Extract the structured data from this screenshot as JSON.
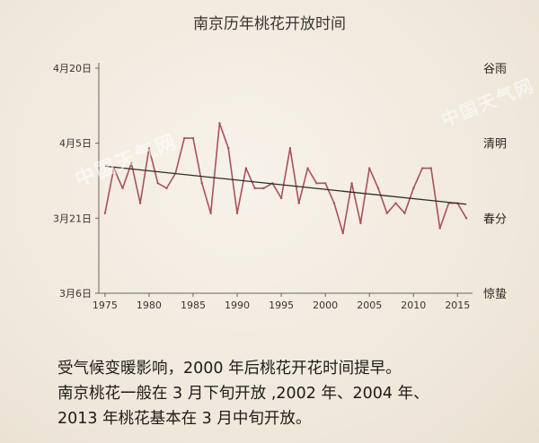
{
  "chart_data": {
    "type": "line",
    "title": "南京历年桃花开放时间",
    "x": [
      1975,
      1976,
      1977,
      1978,
      1979,
      1980,
      1981,
      1982,
      1983,
      1984,
      1985,
      1986,
      1987,
      1988,
      1989,
      1990,
      1991,
      1992,
      1993,
      1994,
      1995,
      1996,
      1997,
      1998,
      1999,
      2000,
      2001,
      2002,
      2003,
      2004,
      2005,
      2006,
      2007,
      2008,
      2009,
      2010,
      2011,
      2012,
      2013,
      2014,
      2015,
      2016
    ],
    "y": [
      22,
      31,
      27,
      32,
      24,
      35,
      28,
      27,
      30,
      37,
      37,
      28,
      22,
      40,
      35,
      22,
      31,
      27,
      27,
      28,
      25,
      35,
      24,
      31,
      28,
      28,
      24,
      18,
      28,
      20,
      31,
      27,
      22,
      24,
      22,
      27,
      31,
      31,
      19,
      24,
      24,
      21
    ],
    "trend": {
      "start": [
        1975,
        31.4
      ],
      "end": [
        2016,
        23.8
      ]
    },
    "x_ticks": [
      1975,
      1980,
      1985,
      1990,
      1995,
      2000,
      2005,
      2010,
      2015
    ],
    "xlim": [
      1974.3,
      2016.7
    ],
    "y_ticks": [
      {
        "value": 6,
        "label": "3月6日"
      },
      {
        "value": 21,
        "label": "3月21日"
      },
      {
        "value": 36,
        "label": "4月5日"
      },
      {
        "value": 51,
        "label": "4月20日"
      }
    ],
    "ylim": [
      6,
      51
    ],
    "solar_terms": [
      {
        "value": 51,
        "label": "谷雨"
      },
      {
        "value": 36,
        "label": "清明"
      },
      {
        "value": 21,
        "label": "春分"
      },
      {
        "value": 6,
        "label": "惊蛰"
      }
    ],
    "grid": false,
    "colors": {
      "line": "#a8525a",
      "trend": "#2e2a27",
      "axis": "#6b635d"
    }
  },
  "watermark": "中国天气网",
  "caption": {
    "line1": "受气候变暖影响，2000 年后桃花开花时间提早。",
    "line2": "南京桃花一般在 3 月下旬开放 ,2002 年、2004 年、",
    "line3": "2013 年桃花基本在 3 月中旬开放。"
  }
}
